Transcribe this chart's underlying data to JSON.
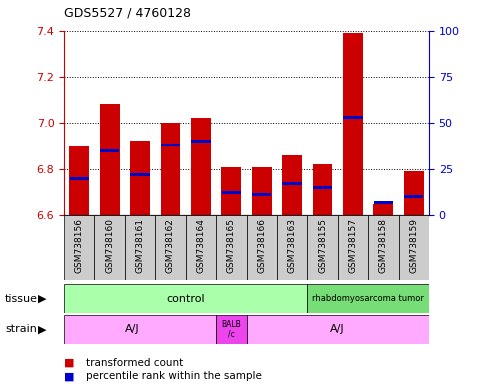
{
  "title": "GDS5527 / 4760128",
  "samples": [
    "GSM738156",
    "GSM738160",
    "GSM738161",
    "GSM738162",
    "GSM738164",
    "GSM738165",
    "GSM738166",
    "GSM738163",
    "GSM738155",
    "GSM738157",
    "GSM738158",
    "GSM738159"
  ],
  "red_values": [
    6.9,
    7.08,
    6.92,
    7.0,
    7.02,
    6.81,
    6.81,
    6.86,
    6.82,
    7.39,
    6.65,
    6.79
  ],
  "blue_values_pct": [
    20,
    35,
    22,
    38,
    40,
    12,
    11,
    17,
    15,
    53,
    7,
    10
  ],
  "ylim_left": [
    6.6,
    7.4
  ],
  "ylim_right": [
    0,
    100
  ],
  "yticks_left": [
    6.6,
    6.8,
    7.0,
    7.2,
    7.4
  ],
  "yticks_right": [
    0,
    25,
    50,
    75,
    100
  ],
  "bar_width": 0.65,
  "red_color": "#cc0000",
  "blue_color": "#0000cc",
  "left_axis_color": "#cc0000",
  "right_axis_color": "#0000cc",
  "base_value": 6.6,
  "tissue_control_color": "#aaffaa",
  "tissue_tumor_color": "#77dd77",
  "strain_aj_color": "#ffaaff",
  "strain_balb_color": "#ee44ee",
  "tick_bg_color": "#cccccc"
}
